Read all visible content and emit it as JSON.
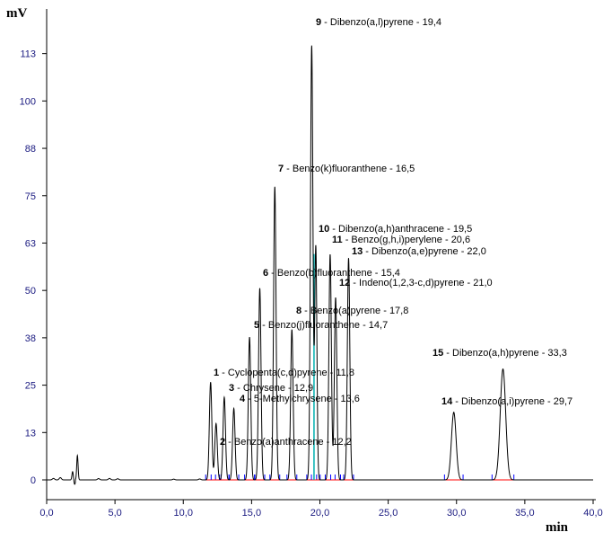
{
  "chart_data": {
    "type": "line",
    "title": "",
    "xlabel": "min",
    "ylabel": "mV",
    "xlim": [
      0,
      40
    ],
    "ylim": [
      -6,
      120
    ],
    "x_ticks": [
      "0,0",
      "5,0",
      "10,0",
      "15,0",
      "20,0",
      "25,0",
      "30,0",
      "35,0",
      "40,0"
    ],
    "x_tick_values": [
      0,
      5,
      10,
      15,
      20,
      25,
      30,
      35,
      40
    ],
    "y_ticks": [
      "0",
      "13",
      "25",
      "38",
      "50",
      "63",
      "75",
      "88",
      "100",
      "113"
    ],
    "y_tick_values": [
      0,
      12.6,
      25.2,
      37.8,
      50.4,
      63,
      75.6,
      88.2,
      100.8,
      113.4
    ],
    "grid": false,
    "colors": {
      "trace": "#000000",
      "axis": "#000000",
      "tick_text": "#1a1a80",
      "baseline_marker": "#0000ff",
      "integration": "#ff0000",
      "peak_highlight": "#00b0b0"
    },
    "early_peaks": [
      {
        "x": 1.9,
        "y": 2.2
      },
      {
        "x": 2.25,
        "y": 6.5
      }
    ],
    "peaks": [
      {
        "n": "1",
        "text": " - Cyclopenta(c,d)pyrene - 11,8",
        "x": 12.0,
        "y": 26.0,
        "w": 0.09
      },
      {
        "n": "2",
        "text": " - Benzo(a)anthracene - 12,2",
        "x": 12.4,
        "y": 15.0,
        "w": 0.09
      },
      {
        "n": "3",
        "text": " - Chrysene - 12,9",
        "x": 13.0,
        "y": 22.0,
        "w": 0.09
      },
      {
        "n": "4",
        "text": " - 5-Methylchrysene - 13,6",
        "x": 13.7,
        "y": 19.0,
        "w": 0.09
      },
      {
        "n": "5",
        "text": " - Benzo(j)fluoranthene - 14,7",
        "x": 14.85,
        "y": 38.0,
        "w": 0.09
      },
      {
        "n": "6",
        "text": " - Benzo(b)fluoranthene - 15,4",
        "x": 15.6,
        "y": 51.0,
        "w": 0.09
      },
      {
        "n": "7",
        "text": " - Benzo(k)fluoranthene - 16,5",
        "x": 16.7,
        "y": 78.0,
        "w": 0.09
      },
      {
        "n": "8",
        "text": " - Benzo(a)pyrene - 17,8",
        "x": 17.95,
        "y": 40.0,
        "w": 0.09
      },
      {
        "n": "9",
        "text": " - Dibenzo(a,l)pyrene - 19,4",
        "x": 19.4,
        "y": 115.5,
        "w": 0.09
      },
      {
        "n": "10",
        "text": " - Dibenzo(a,h)anthracene - 19,5",
        "x": 19.7,
        "y": 62.0,
        "w": 0.08
      },
      {
        "n": "11",
        "text": " - Benzo(g,h,i)perylene - 20,6",
        "x": 20.75,
        "y": 60.0,
        "w": 0.09
      },
      {
        "n": "12",
        "text": " - Indeno(1,2,3-c,d)pyrene - 21,0",
        "x": 21.15,
        "y": 48.5,
        "w": 0.09
      },
      {
        "n": "13",
        "text": " - Dibenzo(a,e)pyrene - 22,0",
        "x": 22.1,
        "y": 59.0,
        "w": 0.09
      },
      {
        "n": "14",
        "text": " - Dibenzo(a,i)pyrene - 29,7",
        "x": 29.8,
        "y": 18.0,
        "w": 0.17
      },
      {
        "n": "15",
        "text": " - Dibenzo(a,h)pyrene - 33,3",
        "x": 33.4,
        "y": 29.5,
        "w": 0.2
      }
    ]
  }
}
